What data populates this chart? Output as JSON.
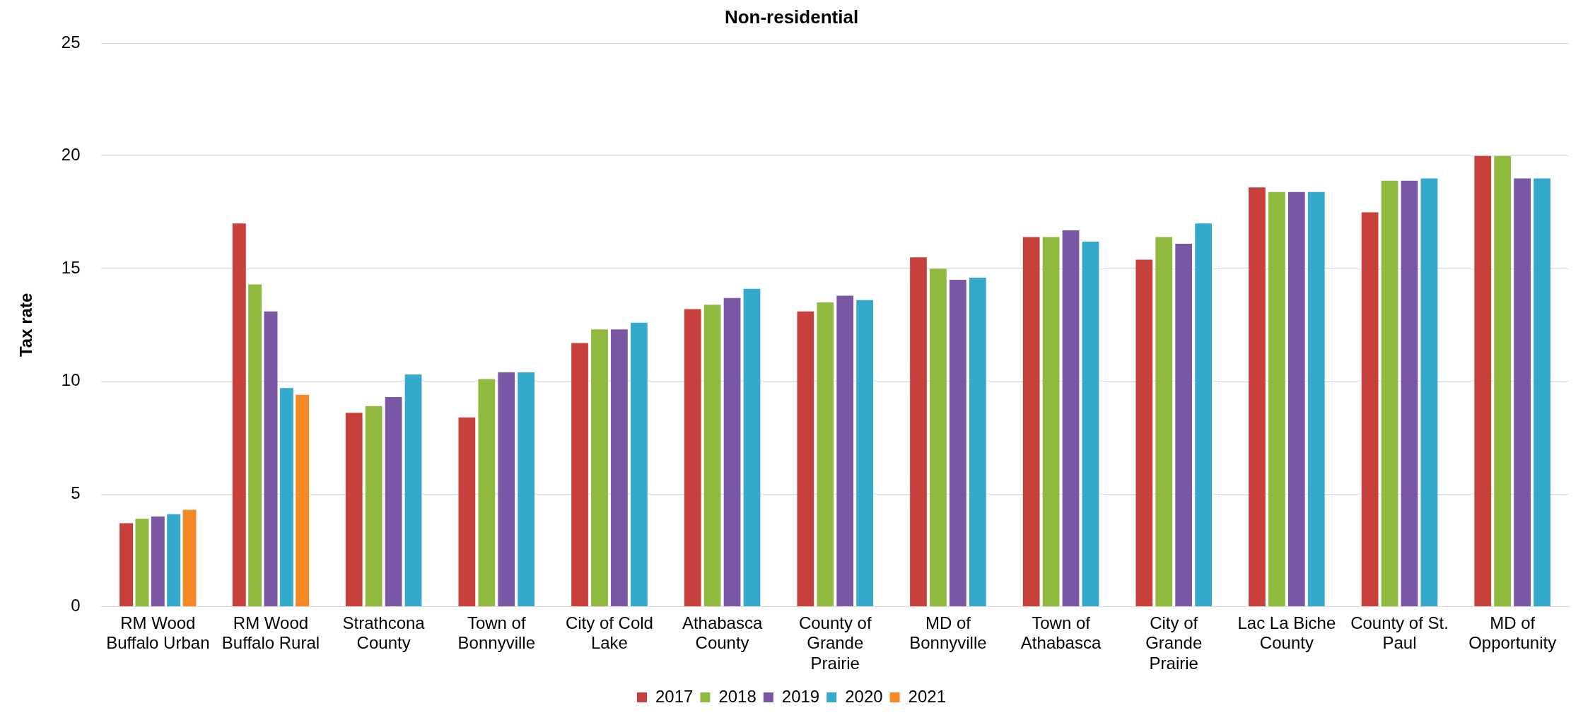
{
  "chart_data": {
    "type": "bar",
    "title": "Non-residential",
    "ylabel": "Tax rate",
    "categories": [
      "RM Wood Buffalo Urban",
      "RM Wood Buffalo Rural",
      "Strathcona County",
      "Town of Bonnyville",
      "City of Cold Lake",
      "Athabasca County",
      "County of Grande Prairie",
      "MD of Bonnyville",
      "Town of Athabasca",
      "City of Grande Prairie",
      "Lac La Biche County",
      "County of St. Paul",
      "MD of Opportunity"
    ],
    "series": [
      {
        "name": "2017",
        "color": "#c8403b",
        "values": [
          3.7,
          17.0,
          8.6,
          8.4,
          11.7,
          13.2,
          13.1,
          15.5,
          16.4,
          15.4,
          18.6,
          17.5,
          20.0
        ]
      },
      {
        "name": "2018",
        "color": "#8fba3d",
        "values": [
          3.9,
          14.3,
          8.9,
          10.1,
          12.3,
          13.4,
          13.5,
          15.0,
          16.4,
          16.4,
          18.4,
          18.9,
          20.0
        ]
      },
      {
        "name": "2019",
        "color": "#7a57a5",
        "values": [
          4.0,
          13.1,
          9.3,
          10.4,
          12.3,
          13.7,
          13.8,
          14.5,
          16.7,
          16.1,
          18.4,
          18.9,
          19.0
        ]
      },
      {
        "name": "2020",
        "color": "#34a9cc",
        "values": [
          4.1,
          9.7,
          10.3,
          10.4,
          12.6,
          14.1,
          13.6,
          14.6,
          16.2,
          17.0,
          18.4,
          19.0,
          19.0
        ]
      },
      {
        "name": "2021",
        "color": "#f48a25",
        "values": [
          4.3,
          9.4,
          null,
          null,
          null,
          null,
          null,
          null,
          null,
          null,
          null,
          null,
          null
        ]
      }
    ],
    "ylim": [
      0,
      25
    ],
    "yticks": [
      0,
      5,
      10,
      15,
      20,
      25
    ],
    "grid": "y",
    "legend": "bottom"
  }
}
